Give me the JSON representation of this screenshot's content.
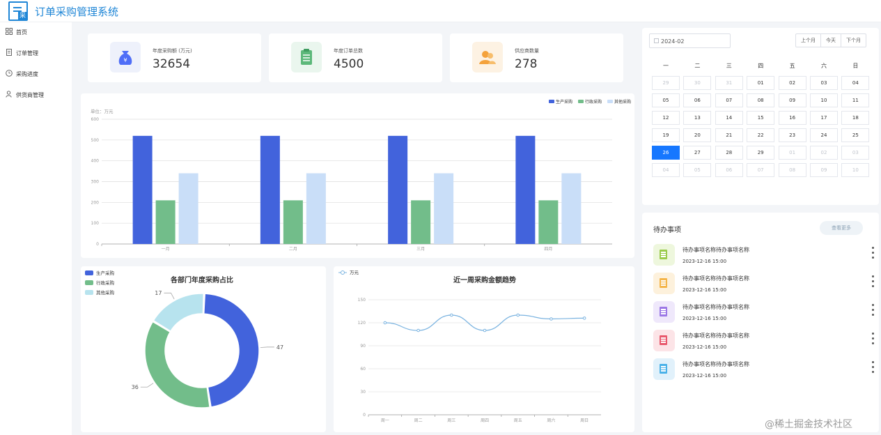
{
  "app": {
    "title": "订单采购管理系统",
    "logo_badge": "采"
  },
  "sidebar": {
    "items": [
      {
        "label": "首页",
        "icon": "grid-icon"
      },
      {
        "label": "订单管理",
        "icon": "document-icon"
      },
      {
        "label": "采购进度",
        "icon": "progress-icon"
      },
      {
        "label": "供货商管理",
        "icon": "user-icon"
      }
    ]
  },
  "stats": [
    {
      "label": "年度采购额 (万元)",
      "value": "32654",
      "icon": "money-bag-icon",
      "color": "#4f6ef7",
      "bg": "#eef1fb"
    },
    {
      "label": "年度订单总数",
      "value": "4500",
      "icon": "clipboard-icon",
      "color": "#5cb87a",
      "bg": "#eaf6ee"
    },
    {
      "label": "供应商数量",
      "value": "278",
      "icon": "users-icon",
      "color": "#f4a23c",
      "bg": "#fdf2e3"
    }
  ],
  "bar_chart_unit": "单位：万元",
  "chart_data": [
    {
      "type": "bar",
      "categories": [
        "一月",
        "二月",
        "三月",
        "四月"
      ],
      "series": [
        {
          "name": "生产采购",
          "values": [
            520,
            520,
            520,
            520
          ],
          "color": "#4263dc"
        },
        {
          "name": "行政采购",
          "values": [
            210,
            210,
            210,
            210
          ],
          "color": "#72bd8a"
        },
        {
          "name": "其他采购",
          "values": [
            340,
            340,
            340,
            340
          ],
          "color": "#c9def8"
        }
      ],
      "yticks": [
        "0",
        "100",
        "200",
        "300",
        "400",
        "500",
        "600"
      ],
      "ylim": [
        0,
        600
      ],
      "grid": true,
      "legend": "top-right"
    },
    {
      "type": "pie",
      "title": "各部门年度采购占比",
      "labels": [
        "生产采购",
        "行政采购",
        "其他采购"
      ],
      "values": [
        47,
        36,
        17
      ],
      "colors": [
        "#4263dc",
        "#72bd8a",
        "#b7e3ee"
      ],
      "legend": "top-left"
    },
    {
      "type": "line",
      "title": "近一周采购金额趋势",
      "series": [
        {
          "name": "万元",
          "values": [
            120,
            110,
            130,
            110,
            130,
            125,
            126
          ],
          "color": "#7ab3e0"
        }
      ],
      "categories": [
        "周一",
        "周二",
        "周三",
        "周四",
        "周五",
        "周六",
        "周日"
      ],
      "yticks": [
        "0",
        "30",
        "60",
        "90",
        "120",
        "150"
      ],
      "ylim": [
        0,
        150
      ],
      "grid": true,
      "legend": "top-left"
    }
  ],
  "calendar": {
    "month_value": "2024-02",
    "buttons": [
      "上个月",
      "今天",
      "下个月"
    ],
    "weekdays": [
      "一",
      "二",
      "三",
      "四",
      "五",
      "六",
      "日"
    ],
    "days": [
      {
        "d": "29",
        "dim": true
      },
      {
        "d": "30",
        "dim": true
      },
      {
        "d": "31",
        "dim": true
      },
      {
        "d": "01"
      },
      {
        "d": "02"
      },
      {
        "d": "03"
      },
      {
        "d": "04"
      },
      {
        "d": "05"
      },
      {
        "d": "06"
      },
      {
        "d": "07"
      },
      {
        "d": "08"
      },
      {
        "d": "09"
      },
      {
        "d": "10"
      },
      {
        "d": "11"
      },
      {
        "d": "12"
      },
      {
        "d": "13"
      },
      {
        "d": "14"
      },
      {
        "d": "15"
      },
      {
        "d": "16"
      },
      {
        "d": "17"
      },
      {
        "d": "18"
      },
      {
        "d": "19"
      },
      {
        "d": "20"
      },
      {
        "d": "21"
      },
      {
        "d": "22"
      },
      {
        "d": "23"
      },
      {
        "d": "24"
      },
      {
        "d": "25"
      },
      {
        "d": "26",
        "sel": true
      },
      {
        "d": "27"
      },
      {
        "d": "28"
      },
      {
        "d": "29"
      },
      {
        "d": "01",
        "dim": true
      },
      {
        "d": "02",
        "dim": true
      },
      {
        "d": "03",
        "dim": true
      },
      {
        "d": "04",
        "dim": true
      },
      {
        "d": "05",
        "dim": true
      },
      {
        "d": "06",
        "dim": true
      },
      {
        "d": "07",
        "dim": true
      },
      {
        "d": "08",
        "dim": true
      },
      {
        "d": "09",
        "dim": true
      },
      {
        "d": "10",
        "dim": true
      }
    ]
  },
  "todo": {
    "title": "待办事项",
    "more_label": "查看更多",
    "items": [
      {
        "name": "待办事项名称待办事项名称",
        "time": "2023-12-16 15:00",
        "color": "#9bcb4b",
        "bg": "#eef7dd"
      },
      {
        "name": "待办事项名称待办事项名称",
        "time": "2023-12-16 15:00",
        "color": "#f4b54a",
        "bg": "#fdf1dc"
      },
      {
        "name": "待办事项名称待办事项名称",
        "time": "2023-12-16 15:00",
        "color": "#9c78e6",
        "bg": "#efe8fb"
      },
      {
        "name": "待办事项名称待办事项名称",
        "time": "2023-12-16 15:00",
        "color": "#e8586c",
        "bg": "#fce4e7"
      },
      {
        "name": "待办事项名称待办事项名称",
        "time": "2023-12-16 15:00",
        "color": "#4ab1e8",
        "bg": "#e1f1fb"
      }
    ]
  },
  "watermark": "@稀土掘金技术社区"
}
